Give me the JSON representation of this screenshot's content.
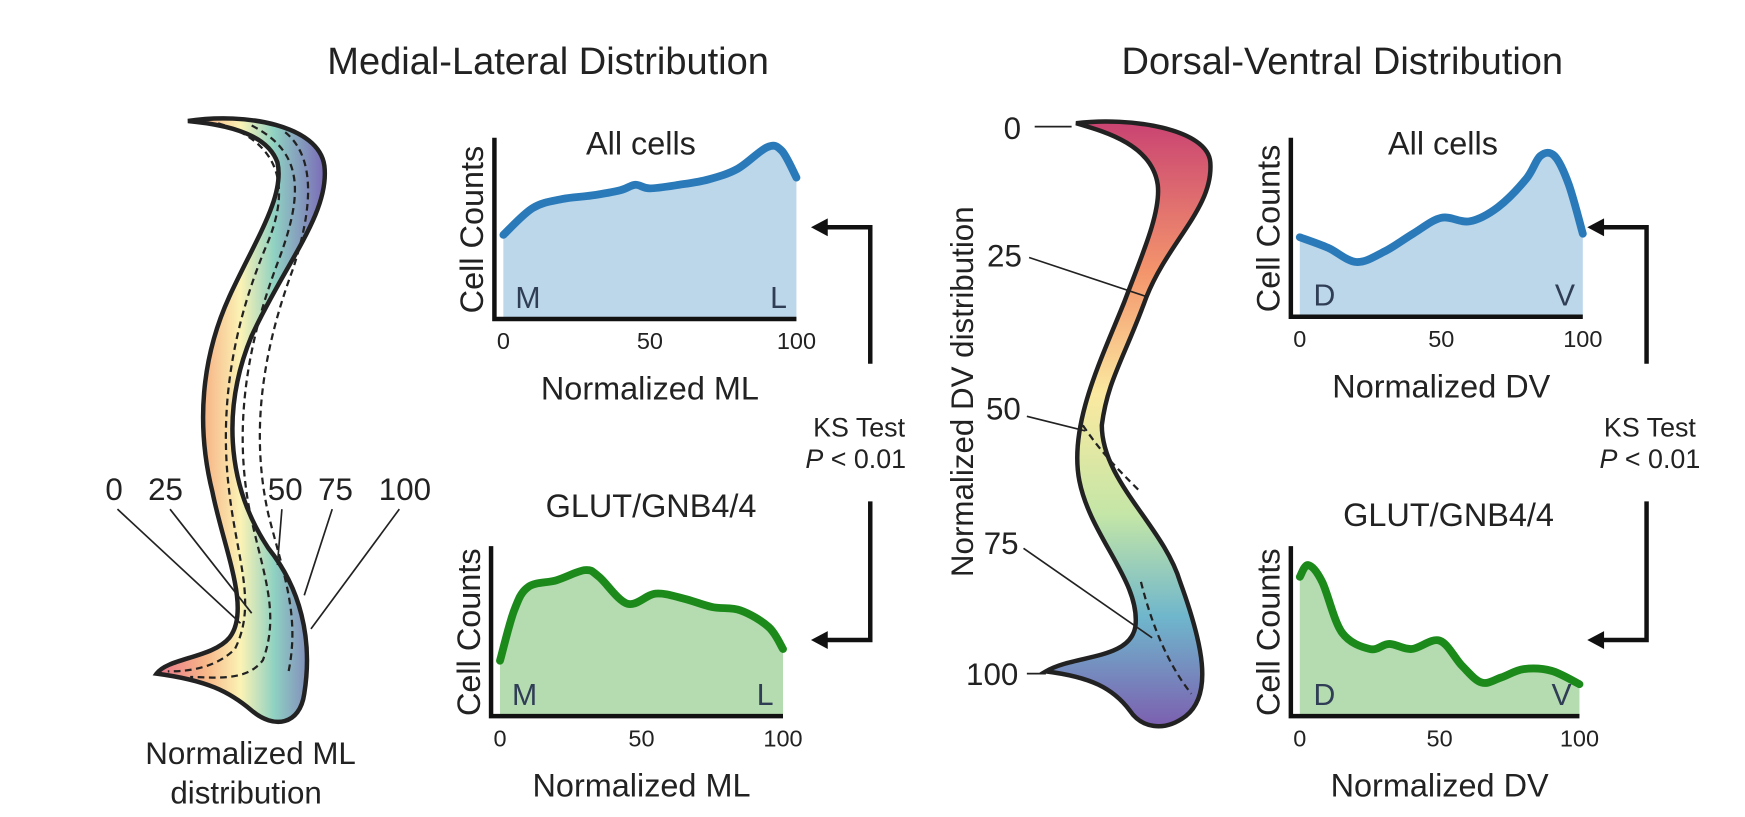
{
  "figure": {
    "titles": [
      "Medial-Lateral Distribution",
      "Dorsal-Ventral Distribution"
    ],
    "ml_diagram": {
      "labels": [
        "0",
        "25",
        "50",
        "75",
        "100"
      ],
      "caption": [
        "Normalized ML",
        "distribution"
      ]
    },
    "dv_diagram": {
      "labels": [
        "0",
        "25",
        "50",
        "75",
        "100"
      ],
      "axis_label": "Normalized DV distribution"
    },
    "ks_tests": [
      {
        "name": "KS Test",
        "p": "P",
        "threshold": "< 0.01"
      },
      {
        "name": "KS Test",
        "p": "P",
        "threshold": "< 0.01"
      }
    ]
  },
  "chart_data": [
    {
      "type": "area",
      "title": "All cells",
      "y_label": "Cell Counts",
      "x_label": "Normalized ML",
      "annotations": [
        "M",
        "L"
      ],
      "x": [
        0,
        10,
        20,
        30,
        40,
        45,
        50,
        60,
        70,
        80,
        90,
        95,
        100
      ],
      "values": [
        0.47,
        0.62,
        0.67,
        0.69,
        0.72,
        0.75,
        0.73,
        0.75,
        0.78,
        0.84,
        0.96,
        0.94,
        0.79
      ],
      "color": "#2a7ab9",
      "fill": "#bcd6ea",
      "xlim": [
        0,
        100
      ],
      "ylim": [
        0,
        1
      ],
      "xticks": [
        0,
        50,
        100
      ]
    },
    {
      "type": "area",
      "title": "GLUT/GNB4/4",
      "y_label": "Cell Counts",
      "x_label": "Normalized ML",
      "annotations": [
        "M",
        "L"
      ],
      "x": [
        0,
        5,
        10,
        20,
        30,
        35,
        45,
        55,
        65,
        75,
        85,
        95,
        100
      ],
      "values": [
        0.33,
        0.63,
        0.77,
        0.81,
        0.87,
        0.83,
        0.67,
        0.73,
        0.7,
        0.65,
        0.63,
        0.53,
        0.4
      ],
      "color": "#1b8a1b",
      "fill": "#b5dbb0",
      "xlim": [
        0,
        100
      ],
      "ylim": [
        0,
        1
      ],
      "xticks": [
        0,
        50,
        100
      ]
    },
    {
      "type": "area",
      "title": "All cells",
      "y_label": "Cell Counts",
      "x_label": "Normalized DV",
      "annotations": [
        "D",
        "V"
      ],
      "x": [
        0,
        10,
        20,
        30,
        40,
        50,
        60,
        70,
        80,
        85,
        90,
        95,
        100
      ],
      "values": [
        0.45,
        0.39,
        0.31,
        0.37,
        0.47,
        0.56,
        0.54,
        0.62,
        0.78,
        0.91,
        0.91,
        0.75,
        0.47
      ],
      "color": "#2a7ab9",
      "fill": "#bcd6ea",
      "xlim": [
        0,
        100
      ],
      "ylim": [
        0,
        1
      ],
      "xticks": [
        0,
        50,
        100
      ]
    },
    {
      "type": "area",
      "title": "GLUT/GNB4/4",
      "y_label": "Cell Counts",
      "x_label": "Normalized DV",
      "annotations": [
        "D",
        "V"
      ],
      "x": [
        0,
        3,
        8,
        15,
        25,
        32,
        40,
        50,
        58,
        65,
        72,
        80,
        90,
        100
      ],
      "values": [
        0.83,
        0.9,
        0.8,
        0.5,
        0.4,
        0.43,
        0.4,
        0.45,
        0.3,
        0.2,
        0.23,
        0.28,
        0.27,
        0.19
      ],
      "color": "#1b8a1b",
      "fill": "#b5dbb0",
      "xlim": [
        0,
        100
      ],
      "ylim": [
        0,
        1
      ],
      "xticks": [
        0,
        50,
        100
      ]
    }
  ]
}
